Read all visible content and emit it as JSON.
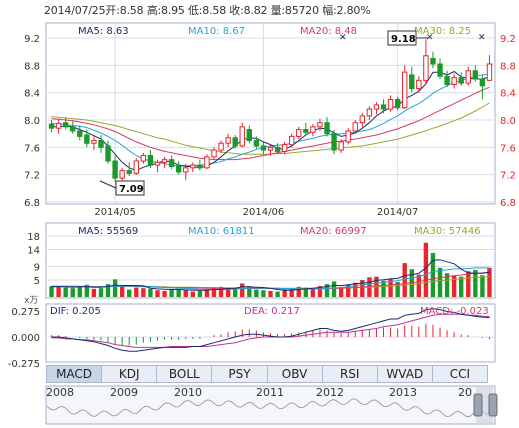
{
  "header": {
    "date": "2014/07/25",
    "open": "开:8.58",
    "high": "高:8.95",
    "low": "低:8.58",
    "close": "收:8.82",
    "volume": "量:85720",
    "change": "幅:2.80%"
  },
  "legend_price": {
    "ma5": "MA5: 8.63",
    "ma10": "MA10: 8.67",
    "ma20": "MA20: 8.48",
    "ma30": "MA30: 8.25"
  },
  "legend_volume": {
    "ma5": "MA5: 55569",
    "ma10": "MA10: 61811",
    "ma20": "MA20: 66997",
    "ma30": "MA30: 57446"
  },
  "legend_macd": {
    "dif": "DIF: 0.205",
    "dea": "DEA: 0.217",
    "macd": "MACD: -0.023"
  },
  "annotations": {
    "high_label": "9.18",
    "low_label": "7.09",
    "volume_unit": "x万"
  },
  "tabs": [
    {
      "label": "MACD",
      "active": true
    },
    {
      "label": "KDJ",
      "active": false
    },
    {
      "label": "BOLL",
      "active": false
    },
    {
      "label": "PSY",
      "active": false
    },
    {
      "label": "OBV",
      "active": false
    },
    {
      "label": "RSI",
      "active": false
    },
    {
      "label": "WVAD",
      "active": false
    },
    {
      "label": "CCI",
      "active": false
    }
  ],
  "overview_years": [
    "2008",
    "2009",
    "2010",
    "2011",
    "2012",
    "2013",
    "20"
  ],
  "colors": {
    "up": "#e8262c",
    "down": "#1a9a2a",
    "ma5": "#1b2b6b",
    "ma10": "#28a3d6",
    "ma20": "#d63a6a",
    "ma30": "#9aa82a",
    "dea": "#c0309a",
    "dif": "#1b2b6b",
    "grid": "#d7dde8"
  },
  "chart_data": [
    {
      "type": "candlestick",
      "title": "",
      "x_tick_labels": [
        "2014/05",
        "2014/06",
        "2014/07"
      ],
      "y_tick_labels": [
        "9.2",
        "8.8",
        "8.4",
        "8.0",
        "7.6",
        "7.2",
        "6.8"
      ],
      "ylim": [
        6.8,
        9.2
      ],
      "grid": true,
      "candles": [
        {
          "o": 7.94,
          "h": 8.0,
          "l": 7.82,
          "c": 7.88
        },
        {
          "o": 7.88,
          "h": 8.02,
          "l": 7.8,
          "c": 7.95
        },
        {
          "o": 7.96,
          "h": 8.04,
          "l": 7.86,
          "c": 7.9
        },
        {
          "o": 7.9,
          "h": 7.98,
          "l": 7.8,
          "c": 7.84
        },
        {
          "o": 7.84,
          "h": 7.92,
          "l": 7.7,
          "c": 7.76
        },
        {
          "o": 7.78,
          "h": 7.86,
          "l": 7.6,
          "c": 7.66
        },
        {
          "o": 7.66,
          "h": 7.76,
          "l": 7.56,
          "c": 7.7
        },
        {
          "o": 7.7,
          "h": 7.78,
          "l": 7.52,
          "c": 7.6
        },
        {
          "o": 7.62,
          "h": 7.7,
          "l": 7.36,
          "c": 7.4
        },
        {
          "o": 7.4,
          "h": 7.48,
          "l": 7.1,
          "c": 7.15
        },
        {
          "o": 7.15,
          "h": 7.3,
          "l": 7.09,
          "c": 7.26
        },
        {
          "o": 7.26,
          "h": 7.38,
          "l": 7.18,
          "c": 7.22
        },
        {
          "o": 7.22,
          "h": 7.44,
          "l": 7.2,
          "c": 7.4
        },
        {
          "o": 7.4,
          "h": 7.52,
          "l": 7.36,
          "c": 7.48
        },
        {
          "o": 7.48,
          "h": 7.56,
          "l": 7.3,
          "c": 7.34
        },
        {
          "o": 7.34,
          "h": 7.42,
          "l": 7.24,
          "c": 7.38
        },
        {
          "o": 7.38,
          "h": 7.46,
          "l": 7.3,
          "c": 7.42
        },
        {
          "o": 7.42,
          "h": 7.48,
          "l": 7.28,
          "c": 7.32
        },
        {
          "o": 7.32,
          "h": 7.4,
          "l": 7.2,
          "c": 7.24
        },
        {
          "o": 7.24,
          "h": 7.36,
          "l": 7.12,
          "c": 7.3
        },
        {
          "o": 7.3,
          "h": 7.38,
          "l": 7.24,
          "c": 7.34
        },
        {
          "o": 7.34,
          "h": 7.42,
          "l": 7.26,
          "c": 7.3
        },
        {
          "o": 7.3,
          "h": 7.5,
          "l": 7.28,
          "c": 7.46
        },
        {
          "o": 7.46,
          "h": 7.6,
          "l": 7.42,
          "c": 7.56
        },
        {
          "o": 7.56,
          "h": 7.7,
          "l": 7.52,
          "c": 7.66
        },
        {
          "o": 7.66,
          "h": 7.8,
          "l": 7.6,
          "c": 7.74
        },
        {
          "o": 7.74,
          "h": 7.78,
          "l": 7.58,
          "c": 7.62
        },
        {
          "o": 7.62,
          "h": 7.96,
          "l": 7.6,
          "c": 7.9
        },
        {
          "o": 7.86,
          "h": 7.92,
          "l": 7.66,
          "c": 7.7
        },
        {
          "o": 7.7,
          "h": 7.76,
          "l": 7.58,
          "c": 7.62
        },
        {
          "o": 7.62,
          "h": 7.68,
          "l": 7.5,
          "c": 7.56
        },
        {
          "o": 7.56,
          "h": 7.64,
          "l": 7.48,
          "c": 7.6
        },
        {
          "o": 7.6,
          "h": 7.66,
          "l": 7.5,
          "c": 7.54
        },
        {
          "o": 7.54,
          "h": 7.68,
          "l": 7.5,
          "c": 7.64
        },
        {
          "o": 7.64,
          "h": 7.8,
          "l": 7.6,
          "c": 7.76
        },
        {
          "o": 7.76,
          "h": 7.9,
          "l": 7.72,
          "c": 7.86
        },
        {
          "o": 7.86,
          "h": 7.96,
          "l": 7.78,
          "c": 7.82
        },
        {
          "o": 7.82,
          "h": 7.94,
          "l": 7.76,
          "c": 7.9
        },
        {
          "o": 7.9,
          "h": 8.02,
          "l": 7.84,
          "c": 7.96
        },
        {
          "o": 7.96,
          "h": 8.04,
          "l": 7.76,
          "c": 7.8
        },
        {
          "o": 7.8,
          "h": 7.86,
          "l": 7.5,
          "c": 7.56
        },
        {
          "o": 7.56,
          "h": 7.72,
          "l": 7.52,
          "c": 7.68
        },
        {
          "o": 7.68,
          "h": 7.88,
          "l": 7.64,
          "c": 7.84
        },
        {
          "o": 7.84,
          "h": 8.0,
          "l": 7.8,
          "c": 7.96
        },
        {
          "o": 7.96,
          "h": 8.1,
          "l": 7.9,
          "c": 8.06
        },
        {
          "o": 8.06,
          "h": 8.2,
          "l": 8.0,
          "c": 8.16
        },
        {
          "o": 8.16,
          "h": 8.26,
          "l": 8.08,
          "c": 8.22
        },
        {
          "o": 8.22,
          "h": 8.3,
          "l": 8.1,
          "c": 8.16
        },
        {
          "o": 8.16,
          "h": 8.36,
          "l": 8.12,
          "c": 8.3
        },
        {
          "o": 8.3,
          "h": 8.34,
          "l": 8.14,
          "c": 8.18
        },
        {
          "o": 8.18,
          "h": 8.8,
          "l": 8.16,
          "c": 8.7
        },
        {
          "o": 8.66,
          "h": 8.78,
          "l": 8.4,
          "c": 8.46
        },
        {
          "o": 8.46,
          "h": 8.64,
          "l": 8.4,
          "c": 8.58
        },
        {
          "o": 8.58,
          "h": 9.18,
          "l": 8.52,
          "c": 8.94
        },
        {
          "o": 8.9,
          "h": 9.0,
          "l": 8.76,
          "c": 8.82
        },
        {
          "o": 8.82,
          "h": 8.9,
          "l": 8.6,
          "c": 8.64
        },
        {
          "o": 8.64,
          "h": 8.72,
          "l": 8.48,
          "c": 8.52
        },
        {
          "o": 8.52,
          "h": 8.68,
          "l": 8.46,
          "c": 8.62
        },
        {
          "o": 8.62,
          "h": 8.7,
          "l": 8.5,
          "c": 8.54
        },
        {
          "o": 8.54,
          "h": 8.78,
          "l": 8.5,
          "c": 8.72
        },
        {
          "o": 8.72,
          "h": 8.8,
          "l": 8.56,
          "c": 8.6
        },
        {
          "o": 8.6,
          "h": 8.66,
          "l": 8.3,
          "c": 8.5
        },
        {
          "o": 8.58,
          "h": 8.95,
          "l": 8.58,
          "c": 8.82
        }
      ],
      "ma5": [
        7.9,
        7.9,
        7.91,
        7.9,
        7.86,
        7.82,
        7.77,
        7.72,
        7.62,
        7.5,
        7.38,
        7.3,
        7.26,
        7.31,
        7.34,
        7.37,
        7.4,
        7.39,
        7.34,
        7.32,
        7.32,
        7.3,
        7.33,
        7.38,
        7.46,
        7.55,
        7.62,
        7.71,
        7.74,
        7.73,
        7.68,
        7.64,
        7.58,
        7.57,
        7.62,
        7.7,
        7.78,
        7.84,
        7.88,
        7.87,
        7.81,
        7.76,
        7.78,
        7.81,
        7.88,
        7.96,
        8.06,
        8.13,
        8.18,
        8.2,
        8.31,
        8.36,
        8.42,
        8.53,
        8.7,
        8.7,
        8.66,
        8.71,
        8.63,
        8.61,
        8.6,
        8.6,
        8.63
      ],
      "ma10": [
        7.95,
        7.94,
        7.93,
        7.92,
        7.91,
        7.89,
        7.85,
        7.81,
        7.76,
        7.7,
        7.63,
        7.55,
        7.48,
        7.43,
        7.4,
        7.38,
        7.36,
        7.34,
        7.33,
        7.33,
        7.33,
        7.34,
        7.35,
        7.37,
        7.39,
        7.43,
        7.46,
        7.5,
        7.53,
        7.57,
        7.6,
        7.62,
        7.63,
        7.64,
        7.66,
        7.69,
        7.71,
        7.73,
        7.76,
        7.78,
        7.79,
        7.8,
        7.81,
        7.82,
        7.84,
        7.86,
        7.9,
        7.95,
        8.01,
        8.06,
        8.13,
        8.19,
        8.24,
        8.31,
        8.39,
        8.45,
        8.5,
        8.55,
        8.58,
        8.61,
        8.64,
        8.66,
        8.67
      ],
      "ma20": [
        8.02,
        8.01,
        8.0,
        7.99,
        7.97,
        7.95,
        7.93,
        7.9,
        7.87,
        7.83,
        7.78,
        7.73,
        7.68,
        7.64,
        7.6,
        7.57,
        7.54,
        7.52,
        7.5,
        7.48,
        7.46,
        7.44,
        7.43,
        7.42,
        7.42,
        7.42,
        7.42,
        7.43,
        7.44,
        7.46,
        7.48,
        7.5,
        7.52,
        7.54,
        7.56,
        7.58,
        7.6,
        7.62,
        7.64,
        7.66,
        7.68,
        7.69,
        7.71,
        7.72,
        7.74,
        7.76,
        7.78,
        7.81,
        7.84,
        7.87,
        7.91,
        7.95,
        7.99,
        8.04,
        8.09,
        8.14,
        8.19,
        8.24,
        8.29,
        8.34,
        8.39,
        8.44,
        8.48
      ],
      "ma30": [
        8.05,
        8.04,
        8.03,
        8.02,
        8.01,
        8.0,
        7.98,
        7.96,
        7.94,
        7.92,
        7.89,
        7.86,
        7.83,
        7.8,
        7.77,
        7.74,
        7.72,
        7.69,
        7.66,
        7.63,
        7.61,
        7.59,
        7.57,
        7.55,
        7.53,
        7.52,
        7.51,
        7.5,
        7.5,
        7.5,
        7.5,
        7.5,
        7.51,
        7.51,
        7.52,
        7.53,
        7.54,
        7.55,
        7.56,
        7.57,
        7.58,
        7.59,
        7.6,
        7.61,
        7.62,
        7.64,
        7.66,
        7.68,
        7.7,
        7.72,
        7.75,
        7.78,
        7.81,
        7.84,
        7.88,
        7.91,
        7.95,
        7.99,
        8.03,
        8.08,
        8.13,
        8.19,
        8.25
      ]
    },
    {
      "type": "bar",
      "title": "",
      "y_tick_labels": [
        "18",
        "14",
        "9",
        "5"
      ],
      "ylim": [
        0,
        18
      ],
      "unit": "x万",
      "volumes": [
        3.2,
        3.0,
        2.8,
        2.6,
        3.2,
        3.6,
        2.4,
        2.6,
        3.8,
        5.2,
        3.0,
        2.2,
        2.8,
        2.6,
        2.4,
        2.0,
        1.8,
        2.2,
        2.4,
        2.0,
        1.6,
        1.8,
        2.2,
        2.8,
        3.0,
        2.6,
        2.4,
        4.0,
        3.2,
        2.2,
        2.0,
        1.8,
        1.6,
        2.2,
        2.6,
        3.0,
        2.8,
        2.6,
        3.2,
        3.8,
        4.6,
        3.0,
        3.6,
        4.2,
        5.0,
        5.8,
        6.0,
        4.8,
        5.4,
        4.4,
        10.0,
        8.2,
        6.6,
        16.0,
        13.0,
        8.6,
        7.0,
        6.2,
        6.0,
        7.6,
        8.0,
        6.4,
        8.6
      ],
      "ma5": [
        3.0,
        3.0,
        3.0,
        2.9,
        3.0,
        3.0,
        2.9,
        2.9,
        3.1,
        3.5,
        3.4,
        3.4,
        3.4,
        3.3,
        2.6,
        2.4,
        2.3,
        2.2,
        2.2,
        2.1,
        2.0,
        2.0,
        2.0,
        2.2,
        2.3,
        2.5,
        2.6,
        3.0,
        3.0,
        2.9,
        2.8,
        2.6,
        2.2,
        2.0,
        2.0,
        2.2,
        2.4,
        2.6,
        2.8,
        3.1,
        3.4,
        3.4,
        3.6,
        3.9,
        4.1,
        4.3,
        4.9,
        5.1,
        5.4,
        5.5,
        6.3,
        6.6,
        7.0,
        8.6,
        10.8,
        11.0,
        10.4,
        9.8,
        8.2,
        7.1,
        7.0,
        7.0,
        7.3
      ],
      "ma10": [
        3.1,
        3.1,
        3.1,
        3.0,
        3.0,
        3.0,
        3.0,
        3.0,
        3.0,
        3.2,
        3.2,
        3.2,
        3.2,
        3.2,
        3.1,
        3.0,
        2.8,
        2.7,
        2.6,
        2.5,
        2.4,
        2.3,
        2.2,
        2.2,
        2.2,
        2.3,
        2.3,
        2.5,
        2.6,
        2.6,
        2.6,
        2.6,
        2.6,
        2.5,
        2.5,
        2.4,
        2.4,
        2.4,
        2.4,
        2.5,
        2.7,
        2.8,
        3.0,
        3.3,
        3.6,
        3.8,
        4.1,
        4.3,
        4.6,
        4.8,
        5.3,
        5.6,
        5.9,
        6.7,
        7.5,
        7.8,
        8.0,
        8.3,
        8.3,
        8.4,
        8.6,
        8.6,
        8.6
      ],
      "ma20": [
        3.2,
        3.2,
        3.2,
        3.2,
        3.1,
        3.1,
        3.1,
        3.1,
        3.1,
        3.1,
        3.1,
        3.1,
        3.1,
        3.0,
        3.0,
        2.9,
        2.9,
        2.8,
        2.8,
        2.8,
        2.7,
        2.7,
        2.6,
        2.6,
        2.6,
        2.6,
        2.5,
        2.5,
        2.5,
        2.5,
        2.5,
        2.5,
        2.5,
        2.4,
        2.4,
        2.4,
        2.4,
        2.4,
        2.5,
        2.5,
        2.6,
        2.6,
        2.7,
        2.8,
        2.9,
        3.1,
        3.3,
        3.4,
        3.6,
        3.7,
        4.0,
        4.2,
        4.5,
        5.0,
        5.4,
        5.7,
        6.0,
        6.3,
        6.5,
        6.8,
        7.0,
        7.1,
        7.3
      ],
      "ma30": [
        3.2,
        3.2,
        3.2,
        3.2,
        3.2,
        3.2,
        3.1,
        3.1,
        3.1,
        3.1,
        3.1,
        3.1,
        3.1,
        3.1,
        3.0,
        3.0,
        3.0,
        2.9,
        2.9,
        2.9,
        2.9,
        2.8,
        2.8,
        2.8,
        2.7,
        2.7,
        2.7,
        2.7,
        2.7,
        2.6,
        2.6,
        2.6,
        2.6,
        2.6,
        2.6,
        2.6,
        2.6,
        2.6,
        2.6,
        2.6,
        2.6,
        2.6,
        2.7,
        2.7,
        2.8,
        2.9,
        3.0,
        3.1,
        3.2,
        3.3,
        3.5,
        3.7,
        3.9,
        4.3,
        4.6,
        4.8,
        5.0,
        5.2,
        5.4,
        5.6,
        5.8,
        5.9,
        6.0
      ]
    },
    {
      "type": "bar",
      "title": "",
      "y_tick_labels": [
        "0.275",
        "0.000",
        "-0.275"
      ],
      "ylim": [
        -0.275,
        0.275
      ],
      "macd": [
        0.02,
        0.02,
        0.01,
        0.0,
        -0.01,
        -0.02,
        -0.03,
        -0.04,
        -0.06,
        -0.08,
        -0.09,
        -0.09,
        -0.08,
        -0.06,
        -0.05,
        -0.04,
        -0.03,
        -0.03,
        -0.03,
        -0.02,
        -0.02,
        -0.02,
        0.0,
        0.02,
        0.03,
        0.05,
        0.06,
        0.08,
        0.08,
        0.07,
        0.05,
        0.04,
        0.03,
        0.03,
        0.04,
        0.05,
        0.06,
        0.07,
        0.08,
        0.07,
        0.05,
        0.04,
        0.05,
        0.06,
        0.07,
        0.08,
        0.09,
        0.1,
        0.1,
        0.09,
        0.12,
        0.12,
        0.11,
        0.14,
        0.13,
        0.1,
        0.07,
        0.05,
        0.03,
        0.02,
        0.0,
        -0.01,
        -0.023
      ],
      "dif": [
        0.0,
        0.0,
        -0.01,
        -0.02,
        -0.03,
        -0.04,
        -0.05,
        -0.07,
        -0.09,
        -0.12,
        -0.14,
        -0.15,
        -0.15,
        -0.14,
        -0.13,
        -0.12,
        -0.11,
        -0.11,
        -0.11,
        -0.11,
        -0.1,
        -0.1,
        -0.08,
        -0.06,
        -0.04,
        -0.02,
        0.0,
        0.02,
        0.03,
        0.03,
        0.02,
        0.01,
        0.0,
        0.0,
        0.01,
        0.03,
        0.05,
        0.07,
        0.09,
        0.09,
        0.07,
        0.06,
        0.07,
        0.09,
        0.11,
        0.13,
        0.15,
        0.17,
        0.19,
        0.19,
        0.23,
        0.24,
        0.25,
        0.29,
        0.3,
        0.29,
        0.27,
        0.26,
        0.24,
        0.23,
        0.22,
        0.21,
        0.205
      ],
      "dea": [
        -0.01,
        -0.01,
        -0.02,
        -0.02,
        -0.03,
        -0.03,
        -0.04,
        -0.05,
        -0.06,
        -0.08,
        -0.09,
        -0.1,
        -0.11,
        -0.11,
        -0.11,
        -0.11,
        -0.11,
        -0.1,
        -0.1,
        -0.1,
        -0.1,
        -0.1,
        -0.1,
        -0.09,
        -0.08,
        -0.07,
        -0.06,
        -0.04,
        -0.02,
        -0.01,
        0.0,
        0.0,
        0.0,
        0.0,
        0.0,
        0.01,
        0.02,
        0.03,
        0.04,
        0.05,
        0.05,
        0.05,
        0.05,
        0.06,
        0.07,
        0.08,
        0.09,
        0.11,
        0.12,
        0.13,
        0.15,
        0.17,
        0.19,
        0.21,
        0.23,
        0.24,
        0.24,
        0.24,
        0.24,
        0.23,
        0.23,
        0.22,
        0.217
      ]
    }
  ]
}
